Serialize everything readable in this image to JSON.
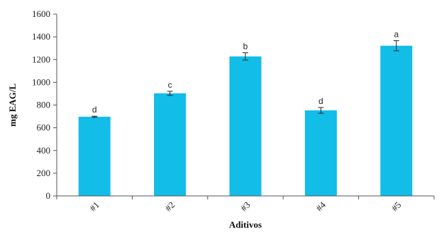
{
  "chart_data": {
    "type": "bar",
    "categories": [
      "#1",
      "#2",
      "#3",
      "#4",
      "#5"
    ],
    "values": [
      697,
      903,
      1228,
      753,
      1322
    ],
    "error": [
      5,
      18,
      32,
      25,
      45
    ],
    "significance_labels": [
      "d",
      "c",
      "b",
      "d",
      "a"
    ],
    "xlabel": "Aditivos",
    "ylabel": "mg EAG/L",
    "ylim": [
      0,
      1600
    ],
    "yticks": [
      0,
      200,
      400,
      600,
      800,
      1000,
      1200,
      1400,
      1600
    ],
    "grid": false,
    "legend": "none",
    "bar_color": "#12bde8"
  }
}
